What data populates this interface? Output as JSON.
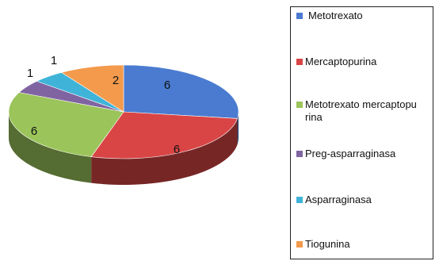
{
  "chart_data": {
    "type": "pie",
    "categories": [
      "Metotrexato",
      "Mercaptopurina",
      "Metotrexato mercaptopu rina",
      "Preg-asparraginasa",
      "Asparraginasa",
      "Tiogunina"
    ],
    "values": [
      6,
      6,
      6,
      1,
      1,
      2
    ],
    "colors": [
      "#4a7bd0",
      "#d94545",
      "#9bc45a",
      "#8064a2",
      "#3fb4d8",
      "#f39a4c"
    ],
    "title": "",
    "legend_position": "right",
    "style": "3d-pie"
  }
}
